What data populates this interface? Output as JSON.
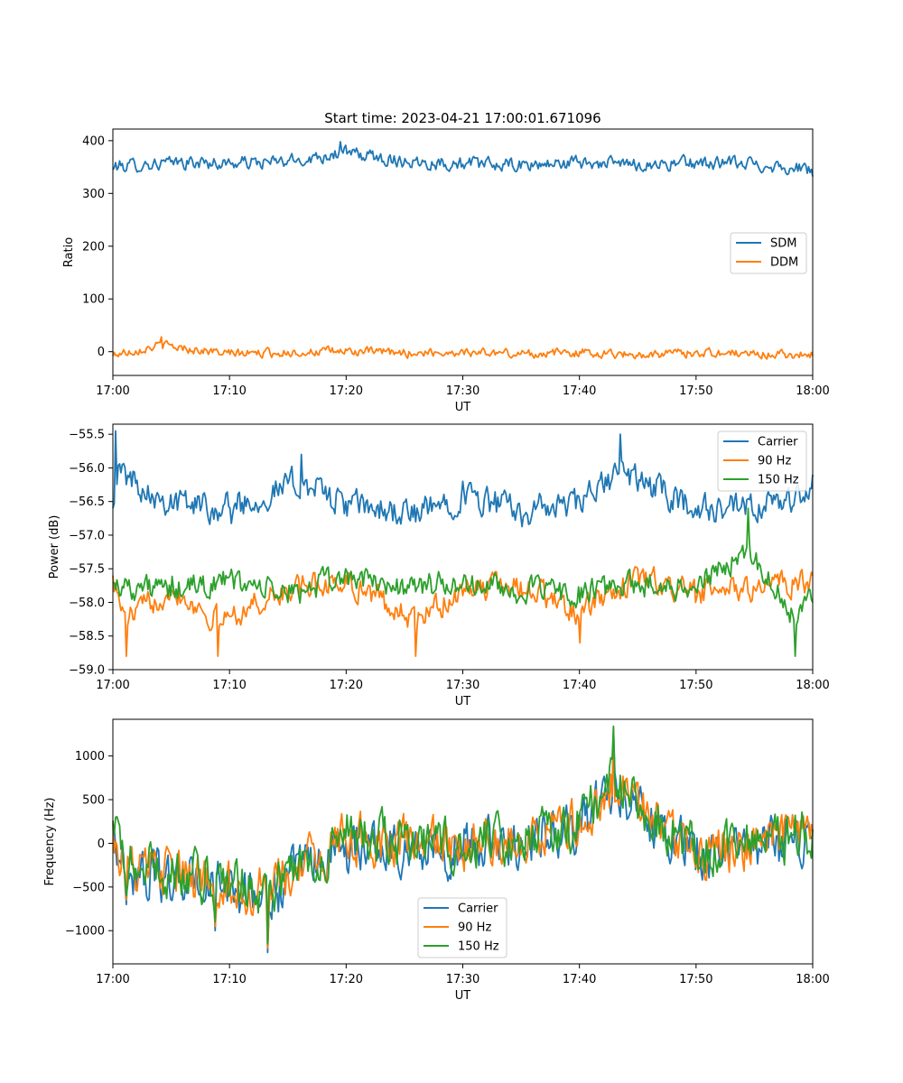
{
  "figure": {
    "title": "Start time: 2023-04-21 17:00:01.671096"
  },
  "chart_data": [
    {
      "type": "line",
      "title": "Start time: 2023-04-21 17:00:01.671096",
      "xlabel": "UT",
      "ylabel": "Ratio",
      "xlim": [
        0,
        60
      ],
      "xunit": "minutes after 17:00",
      "xticks": [
        "17:00",
        "17:10",
        "17:20",
        "17:30",
        "17:40",
        "17:50",
        "18:00"
      ],
      "ylim": [
        -45,
        422
      ],
      "yticks": [
        "0",
        "100",
        "200",
        "300",
        "400"
      ],
      "ytick_values": [
        0,
        100,
        200,
        300,
        400
      ],
      "grid": false,
      "legend_position": "center-right",
      "series": [
        {
          "name": "SDM",
          "color": "#1f77b4",
          "mean": 357,
          "amplitude": 20,
          "x_sample": [
            0,
            5,
            10,
            15,
            19.5,
            25,
            30,
            35,
            40,
            45,
            50,
            55,
            60
          ],
          "y_sample": [
            345,
            360,
            358,
            362,
            398,
            366,
            355,
            348,
            360,
            352,
            358,
            355,
            332
          ]
        },
        {
          "name": "DDM",
          "color": "#ff7f0e",
          "mean": -3,
          "amplitude": 13,
          "x_sample": [
            0,
            4.1,
            10,
            15,
            20,
            25,
            30,
            35,
            40,
            45,
            50,
            55,
            60
          ],
          "y_sample": [
            -8,
            28,
            -5,
            0,
            5,
            -2,
            2,
            -5,
            0,
            -8,
            0,
            -5,
            -8
          ]
        }
      ]
    },
    {
      "type": "line",
      "title": "",
      "xlabel": "UT",
      "ylabel": "Power (dB)",
      "xlim": [
        0,
        60
      ],
      "xunit": "minutes after 17:00",
      "xticks": [
        "17:00",
        "17:10",
        "17:20",
        "17:30",
        "17:40",
        "17:50",
        "18:00"
      ],
      "ylim": [
        -59.0,
        -55.35
      ],
      "yticks": [
        "−55.5",
        "−56.0",
        "−56.5",
        "−57.0",
        "−57.5",
        "−58.0",
        "−58.5",
        "−59.0"
      ],
      "ytick_values": [
        -55.5,
        -56.0,
        -56.5,
        -57.0,
        -57.5,
        -58.0,
        -58.5,
        -59.0
      ],
      "grid": false,
      "legend_position": "upper-right",
      "series": [
        {
          "name": "Carrier",
          "color": "#1f77b4",
          "mean": -56.6,
          "amplitude": 0.35,
          "x_sample": [
            0,
            0.2,
            5,
            10,
            16.2,
            20,
            26,
            30,
            35,
            40,
            43.5,
            50,
            55,
            60
          ],
          "y_sample": [
            -56.6,
            -55.45,
            -56.4,
            -56.6,
            -55.8,
            -56.5,
            -56.8,
            -56.2,
            -56.7,
            -56.5,
            -55.5,
            -56.6,
            -56.7,
            -56.1
          ]
        },
        {
          "name": "90 Hz",
          "color": "#ff7f0e",
          "mean": -57.75,
          "amplitude": 0.3,
          "x_sample": [
            0,
            1.1,
            5,
            9.0,
            15,
            20,
            26,
            30,
            35,
            40,
            45,
            50,
            55,
            60
          ],
          "y_sample": [
            -57.6,
            -58.8,
            -57.8,
            -58.8,
            -57.9,
            -57.6,
            -58.8,
            -57.9,
            -57.7,
            -58.6,
            -57.5,
            -58.0,
            -57.8,
            -57.6
          ]
        },
        {
          "name": "150 Hz",
          "color": "#2ca02c",
          "mean": -57.75,
          "amplitude": 0.3,
          "x_sample": [
            0,
            5,
            10,
            15,
            20,
            25,
            30,
            35,
            40,
            45,
            50,
            54.5,
            58.5,
            60
          ],
          "y_sample": [
            -57.7,
            -57.9,
            -57.6,
            -58.0,
            -57.5,
            -57.8,
            -57.7,
            -57.9,
            -58.0,
            -57.7,
            -57.8,
            -56.6,
            -58.8,
            -58.0
          ]
        }
      ]
    },
    {
      "type": "line",
      "title": "",
      "xlabel": "UT",
      "ylabel": "Frequency (Hz)",
      "xlim": [
        0,
        60
      ],
      "xunit": "minutes after 17:00",
      "xticks": [
        "17:00",
        "17:10",
        "17:20",
        "17:30",
        "17:40",
        "17:50",
        "18:00"
      ],
      "ylim": [
        -1380,
        1420
      ],
      "yticks": [
        "−1000",
        "−500",
        "0",
        "500",
        "1000"
      ],
      "ytick_values": [
        -1000,
        -500,
        0,
        500,
        1000
      ],
      "grid": false,
      "legend_position": "lower-center",
      "series": [
        {
          "name": "Carrier",
          "color": "#1f77b4",
          "mean": 30,
          "amplitude": 450,
          "x_sample": [
            0,
            1.2,
            8.8,
            13.3,
            20,
            30,
            40,
            42.9,
            50,
            60
          ],
          "y_sample": [
            200,
            -700,
            -1000,
            -1250,
            0,
            -200,
            300,
            1300,
            -300,
            100
          ]
        },
        {
          "name": "90 Hz",
          "color": "#ff7f0e",
          "mean": 60,
          "amplitude": 450,
          "x_sample": [
            0,
            1.2,
            8.8,
            13.3,
            20,
            30,
            40,
            42.9,
            50,
            60
          ],
          "y_sample": [
            230,
            -650,
            -950,
            -1200,
            30,
            -170,
            330,
            1320,
            -270,
            130
          ]
        },
        {
          "name": "150 Hz",
          "color": "#2ca02c",
          "mean": 90,
          "amplitude": 450,
          "x_sample": [
            0,
            1.2,
            8.8,
            13.3,
            20,
            30,
            40,
            42.9,
            50,
            60
          ],
          "y_sample": [
            260,
            -600,
            -900,
            -1150,
            60,
            -140,
            360,
            1340,
            -240,
            160
          ]
        }
      ]
    }
  ]
}
